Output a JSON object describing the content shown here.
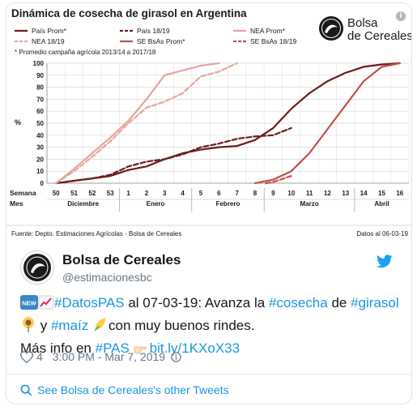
{
  "chart_data": {
    "type": "line",
    "title": "Dinámica de cosecha de girasol en Argentina",
    "note": "* Promedio campaña agrícola 2013/14  a 2017/18",
    "ylabel": "%",
    "ylim": [
      0,
      100
    ],
    "yticks": [
      0,
      10,
      20,
      30,
      40,
      50,
      60,
      70,
      80,
      90,
      100
    ],
    "week_label": "Semana",
    "month_label": "Mes",
    "weeks": [
      "50",
      "51",
      "52",
      "53",
      "1",
      "2",
      "3",
      "4",
      "5",
      "6",
      "7",
      "8",
      "9",
      "10",
      "11",
      "12",
      "13",
      "14",
      "15",
      "16"
    ],
    "months": [
      "Diciembre",
      "Enero",
      "Febrero",
      "Marzo",
      "Abril"
    ],
    "series": [
      {
        "name": "País Prom*",
        "color": "#6b1d1d",
        "dash": false,
        "x": [
          0,
          1,
          2,
          3,
          4,
          5,
          6,
          7,
          8,
          9,
          10,
          11,
          12,
          13,
          14,
          15,
          16,
          17,
          18,
          19
        ],
        "y": [
          0,
          2,
          4,
          6,
          11,
          14,
          20,
          25,
          28,
          30,
          31,
          36,
          46,
          62,
          75,
          85,
          92,
          97,
          99,
          100
        ]
      },
      {
        "name": "País 18/19",
        "color": "#6b1d1d",
        "dash": true,
        "x": [
          0,
          1,
          2,
          3,
          4,
          5,
          6,
          7,
          8,
          9,
          10,
          11,
          12,
          13
        ],
        "y": [
          0,
          2,
          4,
          7,
          14,
          18,
          20,
          24,
          30,
          33,
          37,
          39,
          40,
          46
        ]
      },
      {
        "name": "NEA Prom*",
        "color": "#e6a5a0",
        "dash": false,
        "x": [
          0,
          1,
          2,
          3,
          4,
          5,
          6,
          7,
          8,
          9
        ],
        "y": [
          0,
          12,
          25,
          38,
          52,
          70,
          90,
          94,
          98,
          100
        ]
      },
      {
        "name": "NEA 18/19",
        "color": "#e6a5a0",
        "dash": true,
        "x": [
          0,
          1,
          2,
          3,
          4,
          5,
          6,
          7,
          8,
          9,
          10
        ],
        "y": [
          0,
          10,
          22,
          35,
          50,
          63,
          68,
          75,
          89,
          93,
          100
        ]
      },
      {
        "name": "SE BsAs Prom*",
        "color": "#c0504d",
        "dash": false,
        "x": [
          11,
          12,
          13,
          14,
          15,
          16,
          17,
          18,
          19
        ],
        "y": [
          0,
          3,
          10,
          25,
          45,
          65,
          85,
          97,
          100
        ]
      },
      {
        "name": "SE BsAs 18/19",
        "color": "#c0504d",
        "dash": true,
        "x": [
          11.6,
          12,
          12.4,
          13
        ],
        "y": [
          0,
          1,
          3,
          6
        ]
      }
    ],
    "source": "Fuente: Depto. Estimaciones Agrícolas - Bolsa de Cereales",
    "date_note": "Datos al 06-03-19",
    "logo_text_line1": "Bolsa",
    "logo_text_line2": "de Cereales",
    "grid": true,
    "legend": "top"
  },
  "tweet": {
    "name": "Bolsa de Cereales",
    "handle": "@estimacionesbc",
    "parts": {
      "new_badge": "NEW",
      "h1": "#DatosPAS",
      "t1": " al 07-03-19: Avanza la ",
      "h2": "#cosecha",
      "t2": " de ",
      "h3": "#girasol",
      "t3": " y ",
      "h4": "#maíz",
      "t4": "con muy buenos rindes.",
      "t5": "Más info en  ",
      "h5": "#PAS",
      "link": "bit.ly/1KXoX33"
    },
    "likes": "4",
    "time": "3:00 PM - Mar 7, 2019",
    "other_tweets": "See Bolsa de Cereales's other Tweets"
  }
}
